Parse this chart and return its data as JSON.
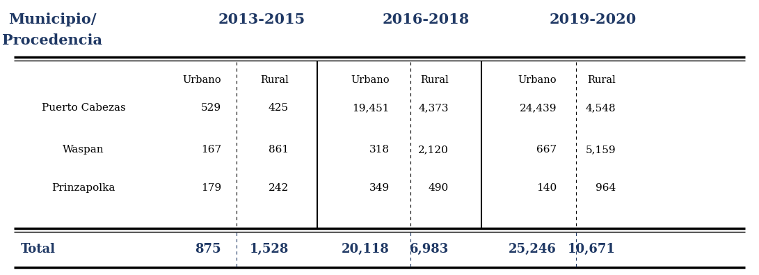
{
  "period_headers": [
    "2013-2015",
    "2016-2018",
    "2019-2020"
  ],
  "sub_headers": [
    "Urbano",
    "Rural",
    "Urbano",
    "Rural",
    "Urbano",
    "Rural"
  ],
  "municipalities": [
    "Puerto Cabezas",
    "Waspan",
    "Prinzapolka"
  ],
  "data": [
    [
      "529",
      "425",
      "19,451",
      "4,373",
      "24,439",
      "4,548"
    ],
    [
      "167",
      "861",
      "318",
      "2,120",
      "667",
      "5,159"
    ],
    [
      "179",
      "242",
      "349",
      "490",
      "140",
      "964"
    ]
  ],
  "totals": [
    "875",
    "1,528",
    "20,118",
    "6,983",
    "25,246",
    "10,671"
  ],
  "total_label": "Total",
  "header_color": "#1f3864",
  "total_color": "#1f3864",
  "data_color": "#000000",
  "subheader_color": "#000000",
  "bg_color": "#ffffff",
  "muni_header_line1": "Municipio/",
  "muni_header_line2": "Procedencia"
}
